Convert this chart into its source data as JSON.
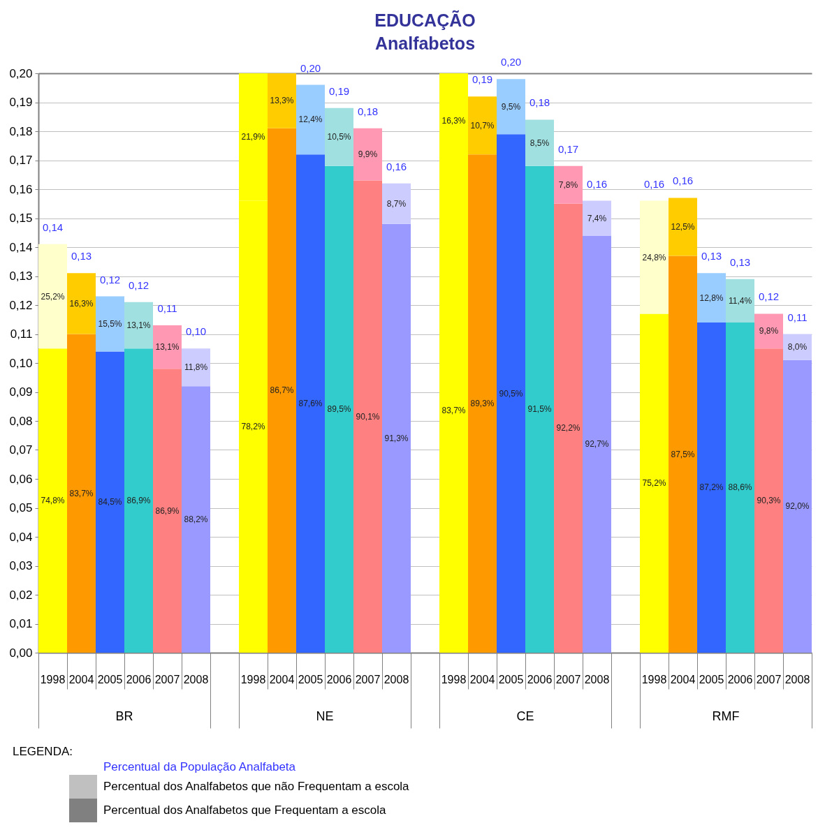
{
  "chart_data": {
    "type": "bar",
    "title": "EDUCAÇÃO",
    "subtitle": "Analfabetos",
    "stacked": true,
    "grid": "y",
    "categories": [
      "1998",
      "2004",
      "2005",
      "2006",
      "2007",
      "2008",
      null,
      "1998",
      "2004",
      "2005",
      "2006",
      "2007",
      "2008",
      null,
      "1998",
      "2004",
      "2005",
      "2006",
      "2007",
      "2008",
      null,
      "1998",
      "2004",
      "2005",
      "2006",
      "2007",
      "2008"
    ],
    "ylim": [
      0,
      0.2
    ],
    "yticks": [
      {
        "value": 0,
        "label": "0,00"
      },
      {
        "value": 0.01,
        "label": "0,01"
      },
      {
        "value": 0.02,
        "label": "0,02"
      },
      {
        "value": 0.03,
        "label": "0,03"
      },
      {
        "value": 0.04,
        "label": "0,04"
      },
      {
        "value": 0.05,
        "label": "0,05"
      },
      {
        "value": 0.06,
        "label": "0,06"
      },
      {
        "value": 0.07,
        "label": "0,07"
      },
      {
        "value": 0.08,
        "label": "0,08"
      },
      {
        "value": 0.09,
        "label": "0,09"
      },
      {
        "value": 0.1,
        "label": "0,10"
      },
      {
        "value": 0.11,
        "label": "0,11"
      },
      {
        "value": 0.12,
        "label": "0,12"
      },
      {
        "value": 0.13,
        "label": "0,13"
      },
      {
        "value": 0.14,
        "label": "0,14"
      },
      {
        "value": 0.15,
        "label": "0,15"
      },
      {
        "value": 0.16,
        "label": "0,16"
      },
      {
        "value": 0.17,
        "label": "0,17"
      },
      {
        "value": 0.18,
        "label": "0,18"
      },
      {
        "value": 0.19,
        "label": "0,19"
      },
      {
        "value": 0.2,
        "label": "0,20"
      }
    ],
    "totals": [
      "0,14",
      "0,13",
      "0,12",
      "0,12",
      "0,11",
      "0,10",
      null,
      null,
      null,
      "0,20",
      "0,19",
      "0,18",
      "0,16",
      null,
      null,
      "0,19",
      "0,20",
      "0,18",
      "0,17",
      "0,16",
      null,
      "0,16",
      "0,16",
      "0,13",
      "0,13",
      "0,12",
      "0,11"
    ],
    "series": [
      {
        "colors": [
          "#ffff00",
          "#ff9900",
          "#3366ff",
          "#33cccc",
          "#ff8080",
          "#9999ff",
          null,
          "#ffff00",
          "#ff9900",
          "#3366ff",
          "#33cccc",
          "#ff8080",
          "#9999ff",
          null,
          "#ffff00",
          "#ff9900",
          "#3366ff",
          "#33cccc",
          "#ff8080",
          "#9999ff",
          null,
          "#ffff00",
          "#ff9900",
          "#3366ff",
          "#33cccc",
          "#ff8080",
          "#9999ff"
        ],
        "values": [
          0.105,
          0.11,
          0.104,
          0.105,
          0.098,
          0.092,
          null,
          0.156,
          0.181,
          0.172,
          0.168,
          0.163,
          0.148,
          null,
          0.167,
          0.172,
          0.179,
          0.168,
          0.155,
          0.144,
          null,
          0.117,
          0.137,
          0.114,
          0.114,
          0.105,
          0.101
        ]
      },
      {
        "colors": [
          "#ffffcc",
          "#ffcc00",
          "#99ccff",
          "#a0e0e0",
          "#ff99b3",
          "#ccccff",
          null,
          "#ffff00",
          "#ffcc00",
          "#99ccff",
          "#a0e0e0",
          "#ff99b3",
          "#ccccff",
          null,
          "#ffff00",
          "#ffcc00",
          "#99ccff",
          "#a0e0e0",
          "#ff99b3",
          "#ccccff",
          null,
          "#ffffcc",
          "#ffcc00",
          "#99ccff",
          "#a0e0e0",
          "#ff99b3",
          "#ccccff"
        ],
        "values": [
          0.036,
          0.021,
          0.019,
          0.016,
          0.015,
          0.013,
          null,
          0.044,
          0.019,
          0.024,
          0.02,
          0.018,
          0.014,
          null,
          0.033,
          0.02,
          0.019,
          0.016,
          0.013,
          0.012,
          null,
          0.039,
          0.02,
          0.017,
          0.015,
          0.012,
          0.009
        ]
      }
    ],
    "annotations": [
      "74,8%",
      "25,2%",
      "83,7%",
      "16,3%",
      "84,5%",
      "15,5%",
      "86,9%",
      "13,1%",
      "86,9%",
      "13,1%",
      "88,2%",
      "11,8%",
      "78,2%",
      "21,9%",
      "86,7%",
      "13,3%",
      "87,6%",
      "12,4%",
      "89,5%",
      "10,5%",
      "90,1%",
      "9,9%",
      "91,3%",
      "8,7%",
      "83,7%",
      "16,3%",
      "89,3%",
      "10,7%",
      "90,5%",
      "9,5%",
      "91,5%",
      "8,5%",
      "92,2%",
      "7,8%",
      "92,7%",
      "7,4%",
      "75,2%",
      "24,8%",
      "87,5%",
      "12,5%",
      "87,2%",
      "12,8%",
      "88,6%",
      "11,4%",
      "90,3%",
      "9,8%",
      "92,0%",
      "8,0%",
      "BR",
      "NE",
      "CE",
      "RMF",
      "LEGENDA:",
      "Percentual da População Analfabeta",
      "Percentual dos Analfabetos que não Frequentam a escola",
      "Percentual dos Analfabetos que Frequentam a escola"
    ]
  }
}
